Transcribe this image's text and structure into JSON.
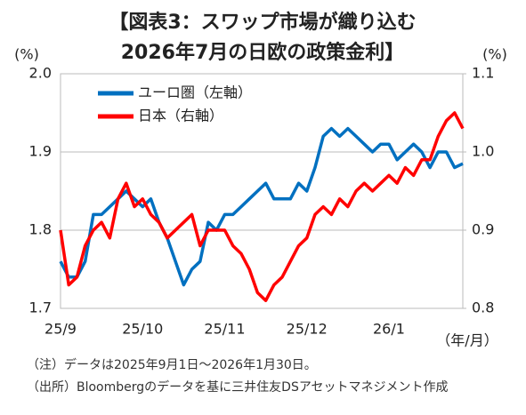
{
  "chart_data": {
    "type": "line",
    "title": [
      "【図表3：スワップ市場が織り込む",
      "2026年7月の日欧の政策金利】"
    ],
    "y_label": "(%)",
    "y2_label": "(%)",
    "x_label": "（年/月）",
    "notes": [
      "（注）データは2025年9月1日～2026年1月30日。",
      "（出所）Bloombergのデータを基に三井住友DSアセットマネジメント作成"
    ],
    "categories": [
      "25/9",
      null,
      null,
      null,
      null,
      null,
      null,
      null,
      null,
      null,
      "25/10",
      null,
      null,
      null,
      null,
      null,
      null,
      null,
      null,
      null,
      "25/11",
      null,
      null,
      null,
      null,
      null,
      null,
      null,
      null,
      null,
      "25/12",
      null,
      null,
      null,
      null,
      null,
      null,
      null,
      null,
      null,
      "26/1",
      null,
      null,
      null,
      null,
      null,
      null,
      null,
      null,
      null
    ],
    "ylim": [
      1.7,
      2.0
    ],
    "yticks": [
      1.7,
      1.8,
      1.9,
      {
        "value": 2,
        "label": "2.0"
      }
    ],
    "y2lim": [
      0.8,
      1.1
    ],
    "y2ticks": [
      0.8,
      0.9,
      {
        "value": 1,
        "label": "1.0"
      },
      1.1
    ],
    "series": [
      {
        "name": "ユーロ圏（左軸）",
        "color": "#0070c0",
        "values": [
          1.76,
          1.74,
          1.74,
          1.76,
          1.82,
          1.82,
          1.83,
          1.84,
          1.85,
          1.84,
          1.83,
          1.84,
          1.81,
          1.79,
          1.76,
          1.73,
          1.75,
          1.76,
          1.81,
          1.8,
          1.82,
          1.82,
          1.83,
          1.84,
          1.85,
          1.86,
          1.84,
          1.84,
          1.84,
          1.86,
          1.85,
          1.88,
          1.92,
          1.93,
          1.92,
          1.93,
          1.92,
          1.91,
          1.9,
          1.91,
          1.91,
          1.89,
          1.9,
          1.91,
          1.9,
          1.88,
          1.9,
          1.9,
          1.88,
          1.885
        ]
      },
      {
        "name": "日本（右軸）",
        "color": "#ff0000",
        "axis": "y2",
        "values": [
          0.9,
          0.83,
          0.84,
          0.88,
          0.9,
          0.91,
          0.89,
          0.94,
          0.96,
          0.93,
          0.94,
          0.92,
          0.91,
          0.89,
          0.9,
          0.91,
          0.92,
          0.88,
          0.9,
          0.9,
          0.9,
          0.88,
          0.87,
          0.85,
          0.82,
          0.81,
          0.83,
          0.84,
          0.86,
          0.88,
          0.89,
          0.92,
          0.93,
          0.92,
          0.94,
          0.93,
          0.95,
          0.96,
          0.95,
          0.96,
          0.97,
          0.96,
          0.98,
          0.97,
          0.99,
          0.99,
          1.02,
          1.04,
          1.05,
          1.03
        ]
      }
    ]
  }
}
